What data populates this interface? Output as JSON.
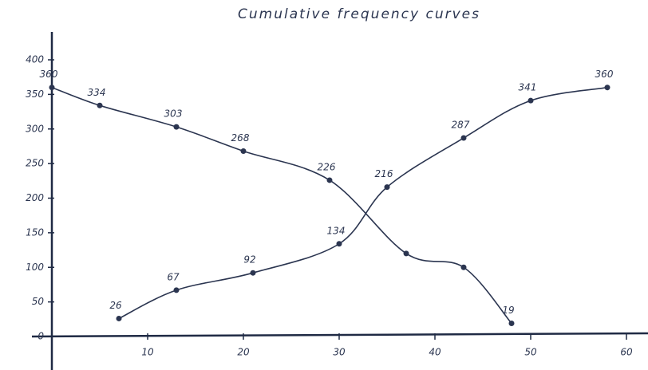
{
  "chart_data": {
    "type": "line",
    "title": "Cumulative frequency curves",
    "xlim": [
      0,
      60
    ],
    "ylim": [
      0,
      400
    ],
    "xticks": [
      10,
      20,
      30,
      40,
      50,
      60
    ],
    "yticks": [
      0,
      50,
      100,
      150,
      200,
      250,
      300,
      350,
      400
    ],
    "series": [
      {
        "color": "#2b3550",
        "x": [
          7,
          13,
          21,
          30,
          35,
          43,
          50,
          58
        ],
        "values": [
          26,
          67,
          92,
          134,
          216,
          287,
          341,
          360
        ],
        "value_labels": [
          "26",
          "67",
          "92",
          "134",
          "216",
          "287",
          "341",
          "360"
        ]
      },
      {
        "color": "#2b3550",
        "x": [
          0,
          5,
          13,
          20,
          29,
          37,
          43,
          48
        ],
        "values": [
          360,
          334,
          303,
          268,
          226,
          120,
          100,
          19
        ],
        "value_labels": [
          "360",
          "334",
          "303",
          "268",
          "226",
          null,
          null,
          "19"
        ]
      }
    ]
  }
}
